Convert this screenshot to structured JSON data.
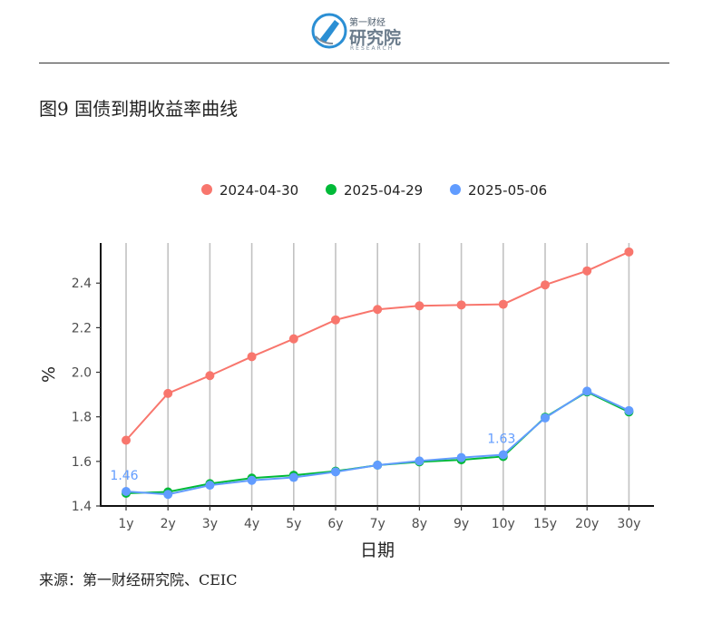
{
  "header": {
    "logo_small": "第一财经",
    "logo_name": "研究院",
    "logo_sub": "RESEARCH"
  },
  "figure_title": "图9 国债到期收益率曲线",
  "source": "来源：第一财经研究院、CEIC",
  "colors": {
    "series_2024_04_30": "#F8766D",
    "series_2025_04_29": "#00BA38",
    "series_2025_05_06": "#619CFF"
  },
  "chart_data": {
    "type": "line",
    "categories": [
      "1y",
      "2y",
      "3y",
      "4y",
      "5y",
      "6y",
      "7y",
      "8y",
      "9y",
      "10y",
      "15y",
      "20y",
      "30y"
    ],
    "series": [
      {
        "name": "2024-04-30",
        "values": [
          1.695,
          1.905,
          1.985,
          2.07,
          2.15,
          2.235,
          2.282,
          2.298,
          2.302,
          2.305,
          2.392,
          2.455,
          2.54
        ]
      },
      {
        "name": "2025-04-29",
        "values": [
          1.457,
          1.463,
          1.5,
          1.525,
          1.538,
          1.556,
          1.583,
          1.598,
          1.607,
          1.622,
          1.798,
          1.912,
          1.822
        ]
      },
      {
        "name": "2025-05-06",
        "values": [
          1.465,
          1.452,
          1.493,
          1.515,
          1.528,
          1.553,
          1.583,
          1.602,
          1.617,
          1.63,
          1.795,
          1.915,
          1.828
        ]
      }
    ],
    "annotations": [
      {
        "text": "1.46",
        "category": "1y",
        "value": 1.465
      },
      {
        "text": "1.63",
        "category": "10y",
        "value": 1.63
      }
    ],
    "xlabel": "日期",
    "ylabel": "%",
    "ylim": [
      1.4,
      2.58
    ],
    "yticks": [
      "1.4",
      "1.6",
      "1.8",
      "2.0",
      "2.2",
      "2.4"
    ],
    "grid": "vertical",
    "legend_position": "top"
  }
}
